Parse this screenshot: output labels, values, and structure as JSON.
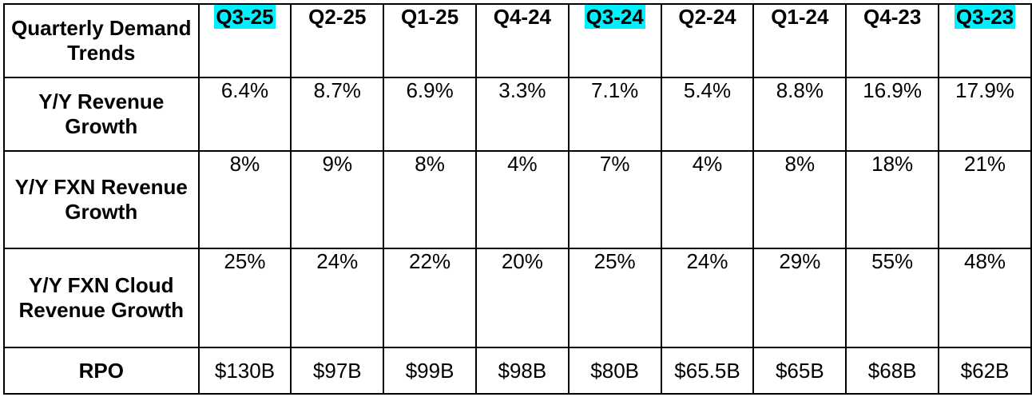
{
  "chart_data": {
    "type": "table",
    "corner_label": "Quarterly Demand Trends",
    "highlight_color": "#00f0ff",
    "columns": [
      {
        "label": "Q3-25",
        "highlighted": true
      },
      {
        "label": "Q2-25",
        "highlighted": false
      },
      {
        "label": "Q1-25",
        "highlighted": false
      },
      {
        "label": "Q4-24",
        "highlighted": false
      },
      {
        "label": "Q3-24",
        "highlighted": true
      },
      {
        "label": "Q2-24",
        "highlighted": false
      },
      {
        "label": "Q1-24",
        "highlighted": false
      },
      {
        "label": "Q4-23",
        "highlighted": false
      },
      {
        "label": "Q3-23",
        "highlighted": true
      }
    ],
    "rows": [
      {
        "label": "Y/Y Revenue Growth",
        "values": [
          "6.4%",
          "8.7%",
          "6.9%",
          "3.3%",
          "7.1%",
          "5.4%",
          "8.8%",
          "16.9%",
          "17.9%"
        ]
      },
      {
        "label": "Y/Y FXN Revenue Growth",
        "values": [
          "8%",
          "9%",
          "8%",
          "4%",
          "7%",
          "4%",
          "8%",
          "18%",
          "21%"
        ]
      },
      {
        "label": "Y/Y FXN Cloud Revenue Growth",
        "values": [
          "25%",
          "24%",
          "22%",
          "20%",
          "25%",
          "24%",
          "29%",
          "55%",
          "48%"
        ]
      },
      {
        "label": "RPO",
        "values": [
          "$130B",
          "$97B",
          "$99B",
          "$98B",
          "$80B",
          "$65.5B",
          "$65B",
          "$68B",
          "$62B"
        ]
      }
    ]
  }
}
